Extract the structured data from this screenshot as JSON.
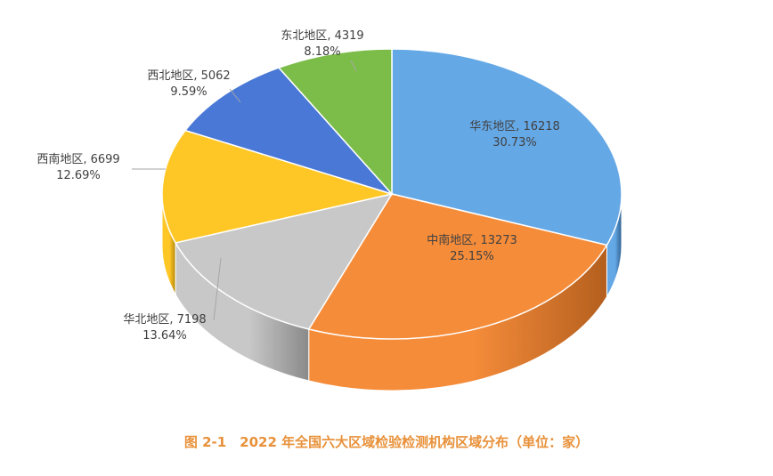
{
  "chart_data": {
    "type": "pie",
    "style": "3d-pie",
    "slices": [
      {
        "name": "华东地区",
        "value": 16218,
        "percent": "30.73%",
        "value_label": "16218",
        "color": "#65A8E6",
        "side_color": "#2E5F8E"
      },
      {
        "name": "中南地区",
        "value": 13273,
        "percent": "25.15%",
        "value_label": "13273",
        "color": "#F58C3A",
        "side_color": "#B45F1E"
      },
      {
        "name": "华北地区",
        "value": 7198,
        "percent": "13.64%",
        "value_label": "7198",
        "color": "#C8C8C8",
        "side_color": "#8A8A8A"
      },
      {
        "name": "西南地区",
        "value": 6699,
        "percent": "12.69%",
        "value_label": "6699",
        "color": "#FFC726",
        "side_color": "#B58A0C"
      },
      {
        "name": "西北地区",
        "value": 5062,
        "percent": "9.59%",
        "value_label": "5062",
        "color": "#4A78D6",
        "side_color": "#2A4A8E"
      },
      {
        "name": "东北地区",
        "value": 4319,
        "percent": "8.18%",
        "value_label": "4319",
        "color": "#7CBD4A",
        "side_color": "#4E7A2A"
      }
    ],
    "legend": "none"
  },
  "caption": {
    "text": "图 2-1　2022 年全国六大区域检验检测机构区域分布（单位：家）"
  }
}
